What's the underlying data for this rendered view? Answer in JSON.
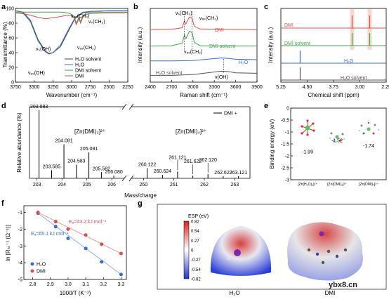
{
  "panels": {
    "a": {
      "letter": "a",
      "xlabel": "Wavenumber (cm⁻¹)",
      "ylabel": "Transmittance (%)",
      "xticks": [
        "3750",
        "3500",
        "3250",
        "3000",
        "2750",
        "2500",
        "2250"
      ],
      "yticks": [
        "100",
        "80",
        "60",
        "40",
        "20",
        "0"
      ],
      "annotations": [
        "νₐₛ(CH₃)",
        "νₛ(CH₃)",
        "νₛ(OH)",
        "νₐₛ(CH₂)",
        "νₐₛ(OH)"
      ],
      "legend": [
        "H₂O solvent",
        "H₂O",
        "DMI solvent",
        "DMI"
      ]
    },
    "b": {
      "letter": "b",
      "xlabel": "Raman shift (cm⁻¹)",
      "ylabel": "Intensity (a.u.)",
      "xticks": [
        "2400",
        "2700",
        "3000",
        "3300",
        "3600",
        "3900"
      ],
      "annotations": [
        "νₛ(CH₃)",
        "νₐₛ(CH₃)",
        "νₐₛ(CH₂)",
        "ν(OH)"
      ],
      "labels": [
        "DMI",
        "DMI solvent",
        "H₂O",
        "H₂O solvent"
      ]
    },
    "c": {
      "letter": "c",
      "xlabel": "Chemical shift (ppm)",
      "ylabel": "Intensity (a.u.)",
      "xticks": [
        "5.25",
        "4.50",
        "3.75",
        "3.00",
        "2.25"
      ],
      "labels": [
        "DMI",
        "DMI solvent",
        "H₂O",
        "H₂O solvent"
      ]
    },
    "d": {
      "letter": "d",
      "xlabel": "Mass/charge",
      "ylabel": "Relative abundance (%)",
      "xticks": [
        "203",
        "204",
        "205",
        "206",
        "260",
        "261",
        "262",
        "263"
      ],
      "legend": "DMI +",
      "species_left": "[Zn(DMI)₃]²⁺",
      "species_right": "[Zn(DMI)₄]²⁺",
      "peak_labels": [
        "203.083",
        "203.585",
        "204.081",
        "204.583",
        "205.081",
        "205.582",
        "206.080",
        "260.122",
        "260.624",
        "261.121",
        "261.622",
        "262.120",
        "262.622",
        "263.121"
      ]
    },
    "e": {
      "letter": "e",
      "ylabel": "Binding energy (eV)",
      "yticks": [
        "0",
        "-0.5",
        "-1",
        "-1.5",
        "-2",
        "-2.5",
        "-3"
      ],
      "categories": [
        "[Zn(H₂O)₆]²⁺",
        "[Zn(DMI)₃]²⁺",
        "[Zn(DMI)₄]²⁺"
      ],
      "value_labels": [
        "-1.99",
        "-1.52",
        "-1.74"
      ],
      "colors": [
        "#5b8fe0",
        "#ffb36b",
        "#77d277"
      ]
    },
    "f": {
      "letter": "f",
      "xlabel": "1000/T (K⁻¹)",
      "ylabel": "ln [Rₕₜ⁻¹ (Ω⁻¹)]",
      "xticks": [
        "2.8",
        "2.9",
        "3.0",
        "3.1",
        "3.2",
        "3.3"
      ],
      "yticks": [
        "-1",
        "-2",
        "-3",
        "-4",
        "-5"
      ],
      "ea_dmi": "Eₐ=43.2 kJ mol⁻¹",
      "ea_h2o": "Eₐ=65.1 kJ mol⁻¹",
      "legend": [
        "H₂O",
        "DMI"
      ]
    },
    "g": {
      "letter": "g",
      "colorbar_title": "ESP (eV)",
      "colorbar_ticks": [
        "0.82",
        "0.54",
        "0.27",
        "0",
        "-0.27",
        "-0.54",
        "-0.82"
      ],
      "labels": [
        "H₂O",
        "DMI"
      ]
    }
  },
  "watermark": "ybx8.cn",
  "chart_data": [
    {
      "panel": "a",
      "type": "line",
      "xlim": [
        3750,
        2250
      ],
      "ylim": [
        0,
        100
      ],
      "series": [
        {
          "name": "H₂O solvent",
          "color": "#444444",
          "x": [
            3750,
            3650,
            3550,
            3450,
            3350,
            3300,
            3250,
            3150,
            3050,
            2950,
            2850,
            2750,
            2500,
            2250
          ],
          "y": [
            97,
            95,
            84,
            58,
            42,
            39,
            40,
            48,
            68,
            87,
            94,
            96,
            97,
            97
          ]
        },
        {
          "name": "H₂O",
          "color": "#3d6fd1",
          "x": [
            3750,
            3650,
            3550,
            3450,
            3350,
            3300,
            3250,
            3150,
            3050,
            2950,
            2850,
            2750,
            2500,
            2250
          ],
          "y": [
            97,
            94,
            82,
            56,
            41,
            38,
            40,
            50,
            70,
            88,
            95,
            96,
            97,
            97
          ]
        },
        {
          "name": "DMI solvent",
          "color": "#3aa64a",
          "x": [
            3750,
            3550,
            3350,
            3150,
            3050,
            3000,
            2960,
            2940,
            2900,
            2880,
            2850,
            2800,
            2750,
            2500,
            2250
          ],
          "y": [
            95,
            95,
            95,
            95,
            94,
            92,
            88,
            80,
            88,
            82,
            90,
            94,
            95,
            95,
            95
          ]
        },
        {
          "name": "DMI",
          "color": "#e34b4b",
          "x": [
            3750,
            3600,
            3450,
            3350,
            3200,
            3050,
            3000,
            2960,
            2940,
            2900,
            2880,
            2850,
            2800,
            2750,
            2500,
            2250
          ],
          "y": [
            94,
            92,
            88,
            86,
            88,
            91,
            90,
            86,
            78,
            86,
            80,
            88,
            92,
            93,
            94,
            94
          ]
        }
      ]
    },
    {
      "panel": "b",
      "type": "line",
      "xlim": [
        2400,
        3900
      ],
      "series": [
        {
          "name": "DMI",
          "color": "#e34b4b",
          "x": [
            2400,
            2700,
            2850,
            2880,
            2900,
            2950,
            2985,
            3000,
            3020,
            3100,
            3300,
            3600,
            3900
          ],
          "y": [
            0.2,
            0.25,
            0.5,
            1.6,
            1.1,
            2.2,
            2.0,
            1.5,
            0.7,
            0.3,
            0.25,
            0.22,
            0.2
          ]
        },
        {
          "name": "DMI solvent",
          "color": "#3aa64a",
          "x": [
            2400,
            2700,
            2850,
            2880,
            2900,
            2950,
            2985,
            3000,
            3020,
            3100,
            3300,
            3600,
            3900
          ],
          "y": [
            0.05,
            0.1,
            0.5,
            1.8,
            1.2,
            2.4,
            2.2,
            1.6,
            0.6,
            0.1,
            0.05,
            0.05,
            0.05
          ]
        },
        {
          "name": "H₂O",
          "color": "#3d6fd1",
          "x": [
            2400,
            2700,
            3000,
            3200,
            3400,
            3500,
            3600,
            3900
          ],
          "y": [
            0.1,
            0.1,
            0.15,
            0.3,
            0.45,
            0.4,
            0.3,
            0.25
          ]
        },
        {
          "name": "H₂O solvent",
          "color": "#555555",
          "x": [
            2400,
            2700,
            3000,
            3200,
            3400,
            3500,
            3600,
            3900
          ],
          "y": [
            0.05,
            0.05,
            0.15,
            0.35,
            0.55,
            0.5,
            0.35,
            0.3
          ]
        }
      ]
    },
    {
      "panel": "c",
      "type": "line",
      "xlim": [
        5.25,
        2.25
      ],
      "peaks": [
        {
          "name": "DMI",
          "color": "#e34b4b",
          "ppm": [
            3.22,
            2.72
          ]
        },
        {
          "name": "DMI solvent",
          "color": "#3aa64a",
          "ppm": [
            3.22,
            2.72
          ]
        },
        {
          "name": "H₂O",
          "color": "#3d6fd1",
          "ppm": [
            4.7
          ]
        },
        {
          "name": "H₂O solvent",
          "color": "#555555",
          "ppm": [
            4.7
          ]
        }
      ]
    },
    {
      "panel": "d",
      "type": "bar",
      "x": [
        203.083,
        203.585,
        204.081,
        204.583,
        205.081,
        205.582,
        206.08,
        260.122,
        260.624,
        261.121,
        261.622,
        262.12,
        262.622,
        263.121
      ],
      "y": [
        100,
        12,
        50,
        20,
        38,
        9,
        4,
        15,
        5,
        10,
        4,
        6,
        3,
        3
      ]
    },
    {
      "panel": "e",
      "type": "bar",
      "categories": [
        "[Zn(H₂O)₆]²⁺",
        "[Zn(DMI)₃]²⁺",
        "[Zn(DMI)₄]²⁺"
      ],
      "values": [
        -1.99,
        -1.52,
        -1.74
      ],
      "ylim": [
        0,
        -3
      ]
    },
    {
      "panel": "f",
      "type": "scatter",
      "xlim": [
        2.75,
        3.33
      ],
      "ylim": [
        -5,
        -0.6
      ],
      "series": [
        {
          "name": "H₂O",
          "color": "#2f6fd6",
          "x": [
            2.83,
            2.93,
            3.0,
            3.1,
            3.19,
            3.3
          ],
          "y": [
            -1.05,
            -1.85,
            -2.55,
            -3.15,
            -3.95,
            -4.7
          ]
        },
        {
          "name": "DMI",
          "color": "#e34b4b",
          "x": [
            2.83,
            2.93,
            3.0,
            3.1,
            3.19,
            3.3
          ],
          "y": [
            -1.0,
            -1.55,
            -2.0,
            -2.35,
            -2.9,
            -3.45
          ]
        }
      ]
    }
  ]
}
